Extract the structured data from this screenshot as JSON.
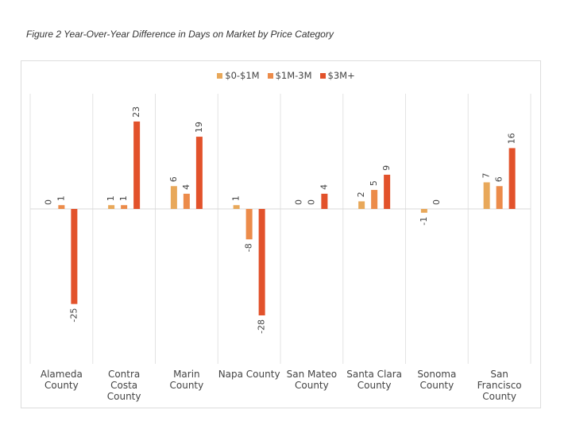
{
  "chart_data": {
    "type": "bar",
    "title": "Figure 2 Year-Over-Year Difference in Days on Market by Price Category",
    "categories": [
      "Alameda County",
      "Contra Costa County",
      "Marin County",
      "Napa County",
      "San Mateo County",
      "Santa Clara County",
      "Sonoma County",
      "San Francisco County"
    ],
    "series": [
      {
        "name": "$0-$1M",
        "color": "#e8a85a",
        "values": [
          0,
          1,
          6,
          1,
          0,
          2,
          -1,
          7
        ]
      },
      {
        "name": "$1M-3M",
        "color": "#ec8b4a",
        "values": [
          1,
          1,
          4,
          -8,
          0,
          5,
          0,
          6
        ]
      },
      {
        "name": "$3M+",
        "color": "#e2522b",
        "values": [
          -25,
          23,
          19,
          -28,
          4,
          9,
          null,
          16
        ]
      }
    ],
    "legend": "top"
  }
}
